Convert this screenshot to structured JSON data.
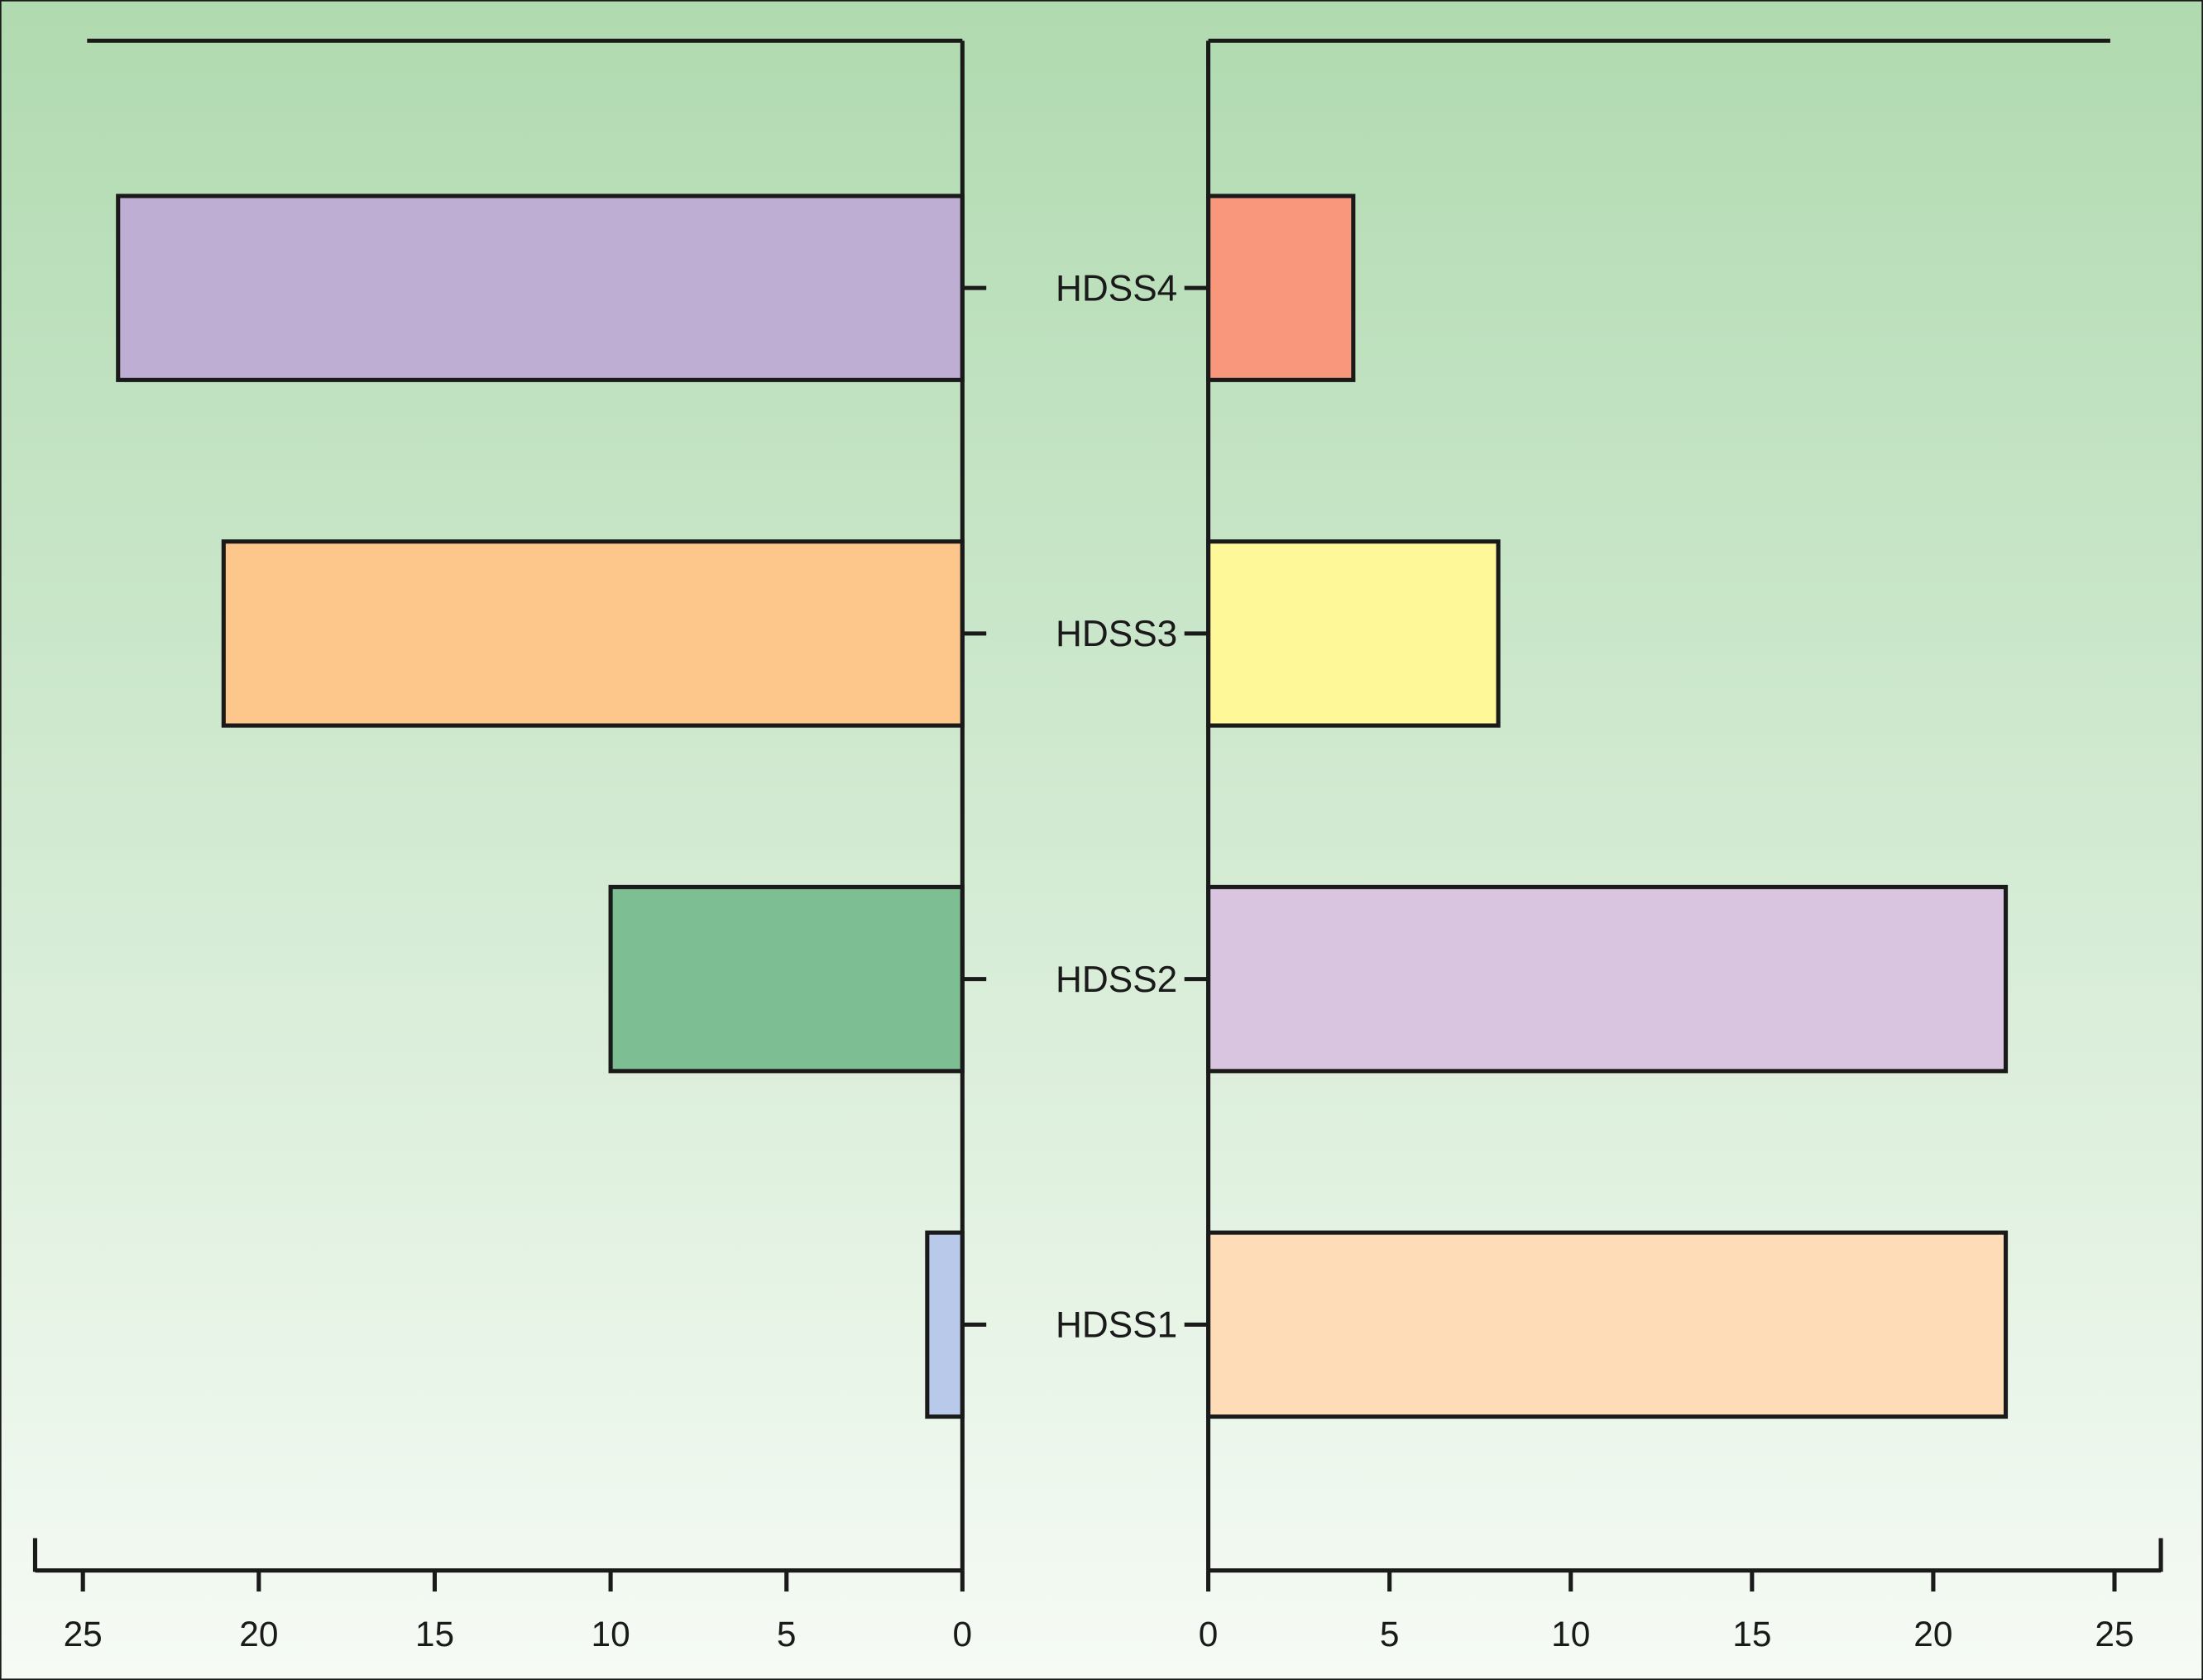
{
  "chart_data": [
    {
      "type": "bar",
      "orientation": "horizontal",
      "direction": "leftward",
      "categories": [
        "HDSS1",
        "HDSS2",
        "HDSS3",
        "HDSS4"
      ],
      "values": [
        1,
        10,
        21,
        24
      ],
      "colors": [
        "#b9c9ea",
        "#7dbf93",
        "#fdc68b",
        "#bfaed4"
      ],
      "xlim": [
        0,
        25
      ],
      "xticks": [
        "0",
        "5",
        "10",
        "15",
        "20",
        "25"
      ],
      "title": "",
      "xlabel": "",
      "ylabel": "",
      "grid": false
    },
    {
      "type": "bar",
      "orientation": "horizontal",
      "direction": "rightward",
      "categories": [
        "HDSS1",
        "HDSS2",
        "HDSS3",
        "HDSS4"
      ],
      "values": [
        22,
        22,
        8,
        4
      ],
      "colors": [
        "#fedcb7",
        "#d9c5e0",
        "#fff899",
        "#f8977b"
      ],
      "xlim": [
        0,
        25
      ],
      "xticks": [
        "0",
        "5",
        "10",
        "15",
        "20",
        "25"
      ],
      "title": "",
      "xlabel": "",
      "ylabel": "",
      "grid": false
    }
  ],
  "style": {
    "background_top": "#b0dab0",
    "background_bottom": "#f6fbf5",
    "stroke": "#1a1a1a"
  }
}
